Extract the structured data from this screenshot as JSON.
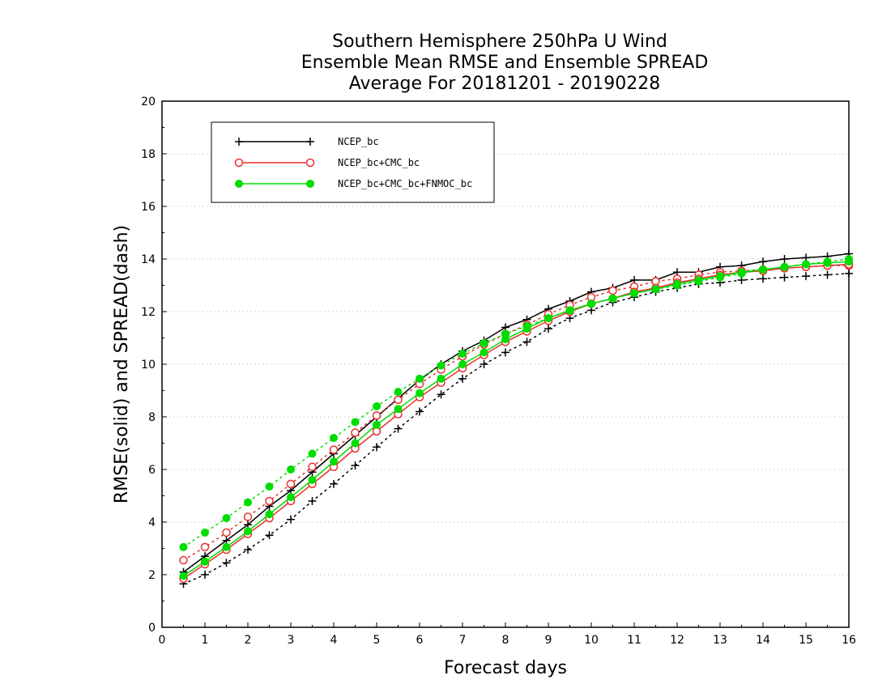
{
  "chart_data": {
    "type": "line",
    "title": [
      "Southern Hemisphere 250hPa U Wind",
      "Ensemble Mean RMSE and Ensemble SPREAD",
      "Average For 20181201 - 20190228"
    ],
    "xlabel": "Forecast days",
    "ylabel": "RMSE(solid) and SPREAD(dash)",
    "xlim": [
      0,
      16
    ],
    "ylim": [
      0,
      20
    ],
    "xticks": [
      "0",
      "1",
      "2",
      "3",
      "4",
      "5",
      "6",
      "7",
      "8",
      "9",
      "10",
      "11",
      "12",
      "13",
      "14",
      "15",
      "16"
    ],
    "yticks": [
      "0",
      "2",
      "4",
      "6",
      "8",
      "10",
      "12",
      "14",
      "16",
      "18",
      "20"
    ],
    "grid": true,
    "legend_position": "top-left",
    "x": [
      0.5,
      1,
      1.5,
      2,
      2.5,
      3,
      3.5,
      4,
      4.5,
      5,
      5.5,
      6,
      6.5,
      7,
      7.5,
      8,
      8.5,
      9,
      9.5,
      10,
      10.5,
      11,
      11.5,
      12,
      12.5,
      13,
      13.5,
      14,
      14.5,
      15,
      15.5,
      16
    ],
    "series": [
      {
        "name": "NCEP_bc",
        "color": "#000000",
        "marker": "plus",
        "rmse": [
          2.1,
          2.7,
          3.3,
          3.9,
          4.6,
          5.2,
          5.9,
          6.6,
          7.3,
          8.0,
          8.7,
          9.4,
          10.0,
          10.5,
          10.9,
          11.4,
          11.7,
          12.1,
          12.4,
          12.75,
          12.9,
          13.2,
          13.2,
          13.5,
          13.5,
          13.7,
          13.75,
          13.9,
          14.0,
          14.05,
          14.1,
          14.2
        ],
        "spread": [
          1.65,
          2.0,
          2.45,
          2.95,
          3.5,
          4.1,
          4.8,
          5.45,
          6.15,
          6.85,
          7.55,
          8.2,
          8.85,
          9.45,
          10.0,
          10.45,
          10.85,
          11.35,
          11.75,
          12.05,
          12.35,
          12.55,
          12.75,
          12.9,
          13.05,
          13.1,
          13.2,
          13.25,
          13.3,
          13.35,
          13.4,
          13.45
        ]
      },
      {
        "name": "NCEP_bc+CMC_bc",
        "color": "#e83030",
        "marker": "circle",
        "rmse": [
          1.85,
          2.4,
          2.95,
          3.55,
          4.15,
          4.8,
          5.45,
          6.1,
          6.8,
          7.45,
          8.1,
          8.75,
          9.3,
          9.85,
          10.35,
          10.85,
          11.25,
          11.65,
          12.0,
          12.3,
          12.5,
          12.75,
          12.9,
          13.1,
          13.25,
          13.4,
          13.5,
          13.55,
          13.65,
          13.7,
          13.75,
          13.8
        ],
        "spread": [
          2.55,
          3.05,
          3.6,
          4.2,
          4.8,
          5.45,
          6.1,
          6.75,
          7.4,
          8.05,
          8.65,
          9.25,
          9.8,
          10.3,
          10.75,
          11.15,
          11.5,
          11.9,
          12.25,
          12.55,
          12.8,
          12.95,
          13.15,
          13.25,
          13.4,
          13.5,
          13.55,
          13.6,
          13.65,
          13.7,
          13.75,
          13.75
        ]
      },
      {
        "name": "NCEP_bc+CMC_bc+FNMOC_bc",
        "color": "#00dd00",
        "marker": "filled-circle",
        "rmse": [
          1.95,
          2.5,
          3.05,
          3.65,
          4.3,
          4.95,
          5.6,
          6.3,
          7.0,
          7.7,
          8.3,
          8.9,
          9.45,
          10.0,
          10.45,
          10.95,
          11.35,
          11.75,
          12.05,
          12.3,
          12.5,
          12.7,
          12.85,
          13.05,
          13.2,
          13.35,
          13.5,
          13.6,
          13.7,
          13.8,
          13.85,
          13.9
        ],
        "spread": [
          3.05,
          3.6,
          4.15,
          4.75,
          5.35,
          6.0,
          6.6,
          7.2,
          7.8,
          8.4,
          8.95,
          9.45,
          9.95,
          10.4,
          10.8,
          11.15,
          11.45,
          11.75,
          12.05,
          12.3,
          12.5,
          12.7,
          12.85,
          13.0,
          13.15,
          13.3,
          13.45,
          13.6,
          13.7,
          13.8,
          13.9,
          14.0
        ]
      }
    ]
  }
}
